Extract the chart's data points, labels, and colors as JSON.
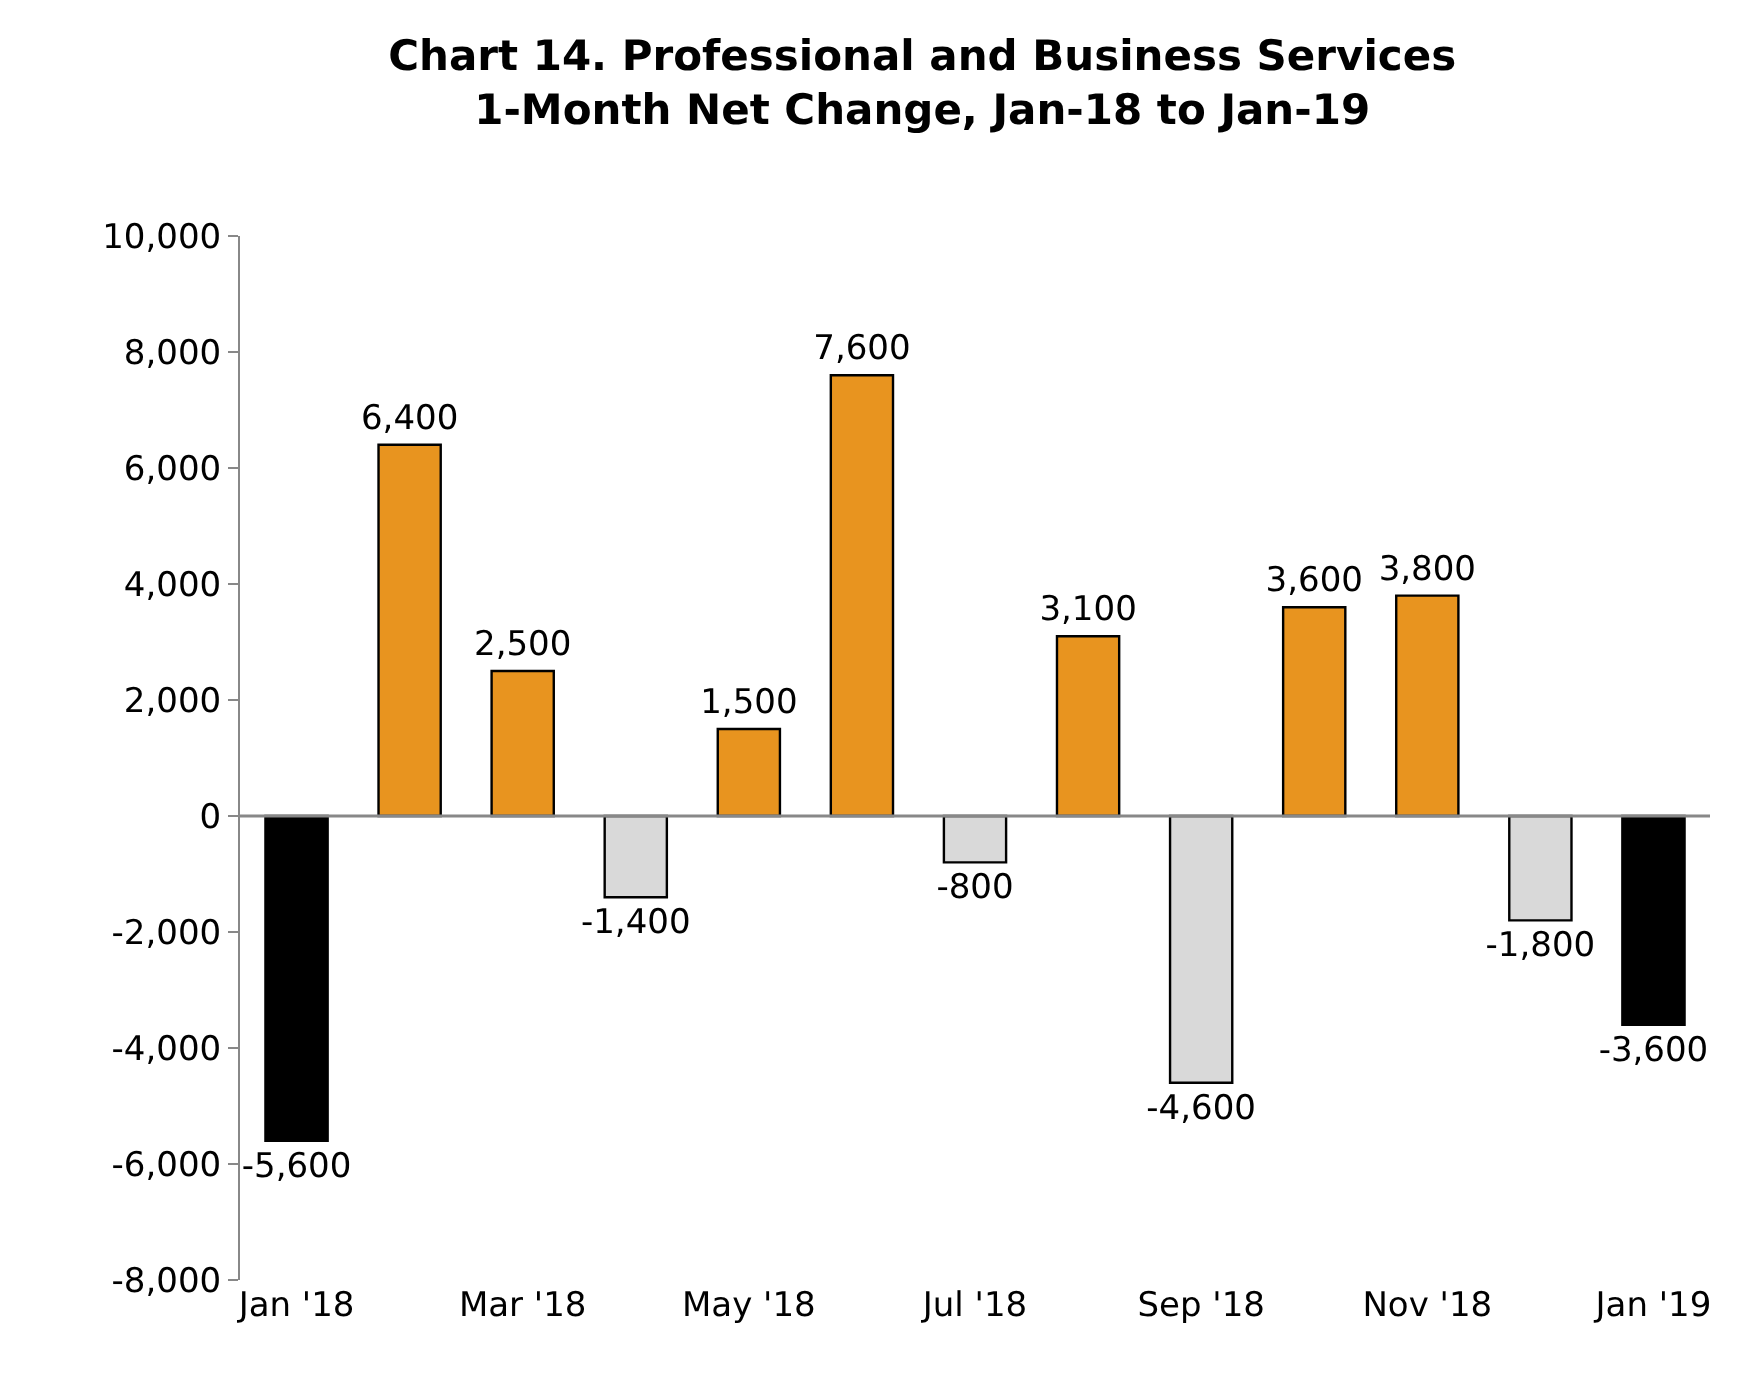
{
  "chart_data": {
    "type": "bar",
    "title": "Chart 14. Professional and Business Services\n1-Month Net Change, Jan-18 to Jan-19",
    "categories": [
      "Jan '18",
      null,
      "Mar '18",
      null,
      "May '18",
      null,
      "Jul '18",
      null,
      "Sep '18",
      null,
      "Nov '18",
      null,
      "Jan '19"
    ],
    "values": [
      -5600,
      6400,
      2500,
      -1400,
      1500,
      7600,
      -800,
      3100,
      -4600,
      3600,
      3800,
      -1800,
      -3600
    ],
    "colors": [
      "#000000",
      "#e8941f",
      "#e8941f",
      "#d9d9d9",
      "#e8941f",
      "#e8941f",
      "#d9d9d9",
      "#e8941f",
      "#d9d9d9",
      "#e8941f",
      "#e8941f",
      "#d9d9d9",
      "#000000"
    ],
    "ylim": [
      -8000,
      10000
    ],
    "yticks": [
      {
        "value": -8000,
        "label": "-8,000"
      },
      {
        "value": -6000,
        "label": "-6,000"
      },
      {
        "value": -4000,
        "label": "-4,000"
      },
      {
        "value": -2000,
        "label": "-2,000"
      },
      0,
      {
        "value": 2000,
        "label": "2,000"
      },
      {
        "value": 4000,
        "label": "4,000"
      },
      {
        "value": 6000,
        "label": "6,000"
      },
      {
        "value": 8000,
        "label": "8,000"
      },
      {
        "value": 10000,
        "label": "10,000"
      }
    ],
    "value_labels": [
      "-5,600",
      "6,400",
      "2,500",
      "-1,400",
      "1,500",
      "7,600",
      "-800",
      "3,100",
      "-4,600",
      "3,600",
      "3,800",
      "-1,800",
      "-3,600"
    ]
  }
}
